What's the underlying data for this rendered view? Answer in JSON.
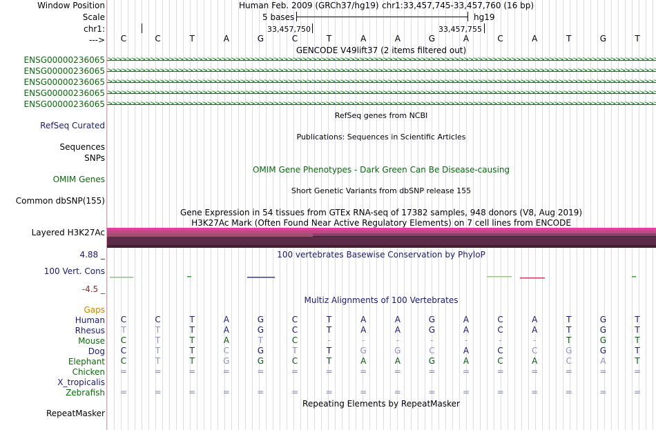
{
  "labels": {
    "window_position": "Window Position",
    "scale": "Scale",
    "chrom": "chr1:",
    "arrow": "--->",
    "genes": [
      "ENSG00000236065",
      "ENSG00000236065",
      "ENSG00000236065",
      "ENSG00000236065",
      "ENSG00000236065"
    ],
    "refseq": "RefSeq Curated",
    "sequences": "Sequences",
    "snps": "SNPs",
    "omim": "OMIM Genes",
    "common_dbsnp": "Common dbSNP(155)",
    "layered": "Layered H3K27Ac",
    "phylop_max": "4.88 _",
    "vert_cons": "100 Vert. Cons",
    "phylop_min": "-4.5 _",
    "gaps": "Gaps",
    "species": [
      "Human",
      "Rhesus",
      "Mouse",
      "Dog",
      "Elephant",
      "Chicken",
      "X_tropicalis",
      "Zebrafish"
    ],
    "repeatmasker": "RepeatMasker"
  },
  "header": {
    "assembly": "Human Feb. 2009 (GRCh37/hg19)",
    "position": "chr1:33,457,745-33,457,760 (16 bp)",
    "scale_label": "5 bases",
    "db": "hg19",
    "coord1": "33,457,750",
    "coord2": "33,457,755"
  },
  "bases": [
    "C",
    "C",
    "T",
    "A",
    "G",
    "C",
    "T",
    "A",
    "A",
    "G",
    "A",
    "C",
    "A",
    "T",
    "G",
    "T"
  ],
  "tracks": {
    "gencode": "GENCODE V49lift37 (2 items filtered out)",
    "gene_arrows": ">>>>>>>>>>>>>>>>>>>>>>>>>>>>>>>>>>>>>>>>>>>>>>>>>>>>>>>>>>>>>>>>>>>>>>>>>>>>>>>>>>>>>>>>>>>>>>>>>>>>>>>>>>>>>>>>>>>>>>>>>>>>>>>>>>>>>>>",
    "refseq": "RefSeq genes from NCBI",
    "publications": "Publications: Sequences in Scientific Articles",
    "omim": "OMIM Gene Phenotypes - Dark Green Can Be Disease-causing",
    "dbsnp": "Short Genetic Variants from dbSNP release 155",
    "gtex": "Gene Expression in 54 tissues from GTEx RNA-seq of 17382 samples, 948 donors (V8, Aug 2019)",
    "h3k27ac": "H3K27Ac Mark (Often Found Near Active Regulatory Elements) on 7 cell lines from ENCODE",
    "phylop": "100 vertebrates Basewise Conservation by PhyloP",
    "multiz": "Multiz Alignments of 100 Vertebrates",
    "repeatmasker": "Repeating Elements by RepeatMasker"
  },
  "alignment": {
    "Human": [
      "C",
      "C",
      "T",
      "A",
      "G",
      "C",
      "T",
      "A",
      "A",
      "G",
      "A",
      "C",
      "A",
      "T",
      "G",
      "T"
    ],
    "Rhesus": [
      "T",
      "T",
      "T",
      "A",
      "G",
      "C",
      "T",
      "A",
      "A",
      "G",
      "A",
      "C",
      "A",
      "T",
      "G",
      "T"
    ],
    "Mouse": [
      "C",
      "T",
      "T",
      "A",
      "T",
      "C",
      "-",
      "-",
      "-",
      "-",
      "-",
      "-",
      "-",
      "T",
      "G",
      "T"
    ],
    "Dog": [
      "C",
      "T",
      "T",
      "C",
      "G",
      "T",
      "T",
      "G",
      "G",
      "C",
      "A",
      "C",
      "C",
      "G",
      "G",
      "T"
    ],
    "Elephant": [
      "C",
      "T",
      "T",
      "G",
      "G",
      "C",
      "T",
      "A",
      "A",
      "G",
      "A",
      "C",
      "A",
      "C",
      "A",
      "T"
    ],
    "Chicken": [
      "=",
      "=",
      "=",
      "=",
      "=",
      "=",
      "=",
      "=",
      "=",
      "=",
      "=",
      "=",
      "=",
      "=",
      "=",
      "="
    ],
    "X_tropicalis": [],
    "Zebrafish": [
      "=",
      "=",
      "=",
      "=",
      "=",
      "=",
      "=",
      "=",
      "=",
      "=",
      "=",
      "=",
      "=",
      "=",
      "=",
      "="
    ]
  },
  "colors": {
    "gene": "#0a7a0a",
    "navy": "#1a1a6e",
    "gaps": "#d08000",
    "phylop_pos": "#2a2a8a",
    "phylop_neg": "#8a2a2a",
    "h3k27ac_top": "#e040a0",
    "h3k27ac_bottom": "#402030"
  }
}
